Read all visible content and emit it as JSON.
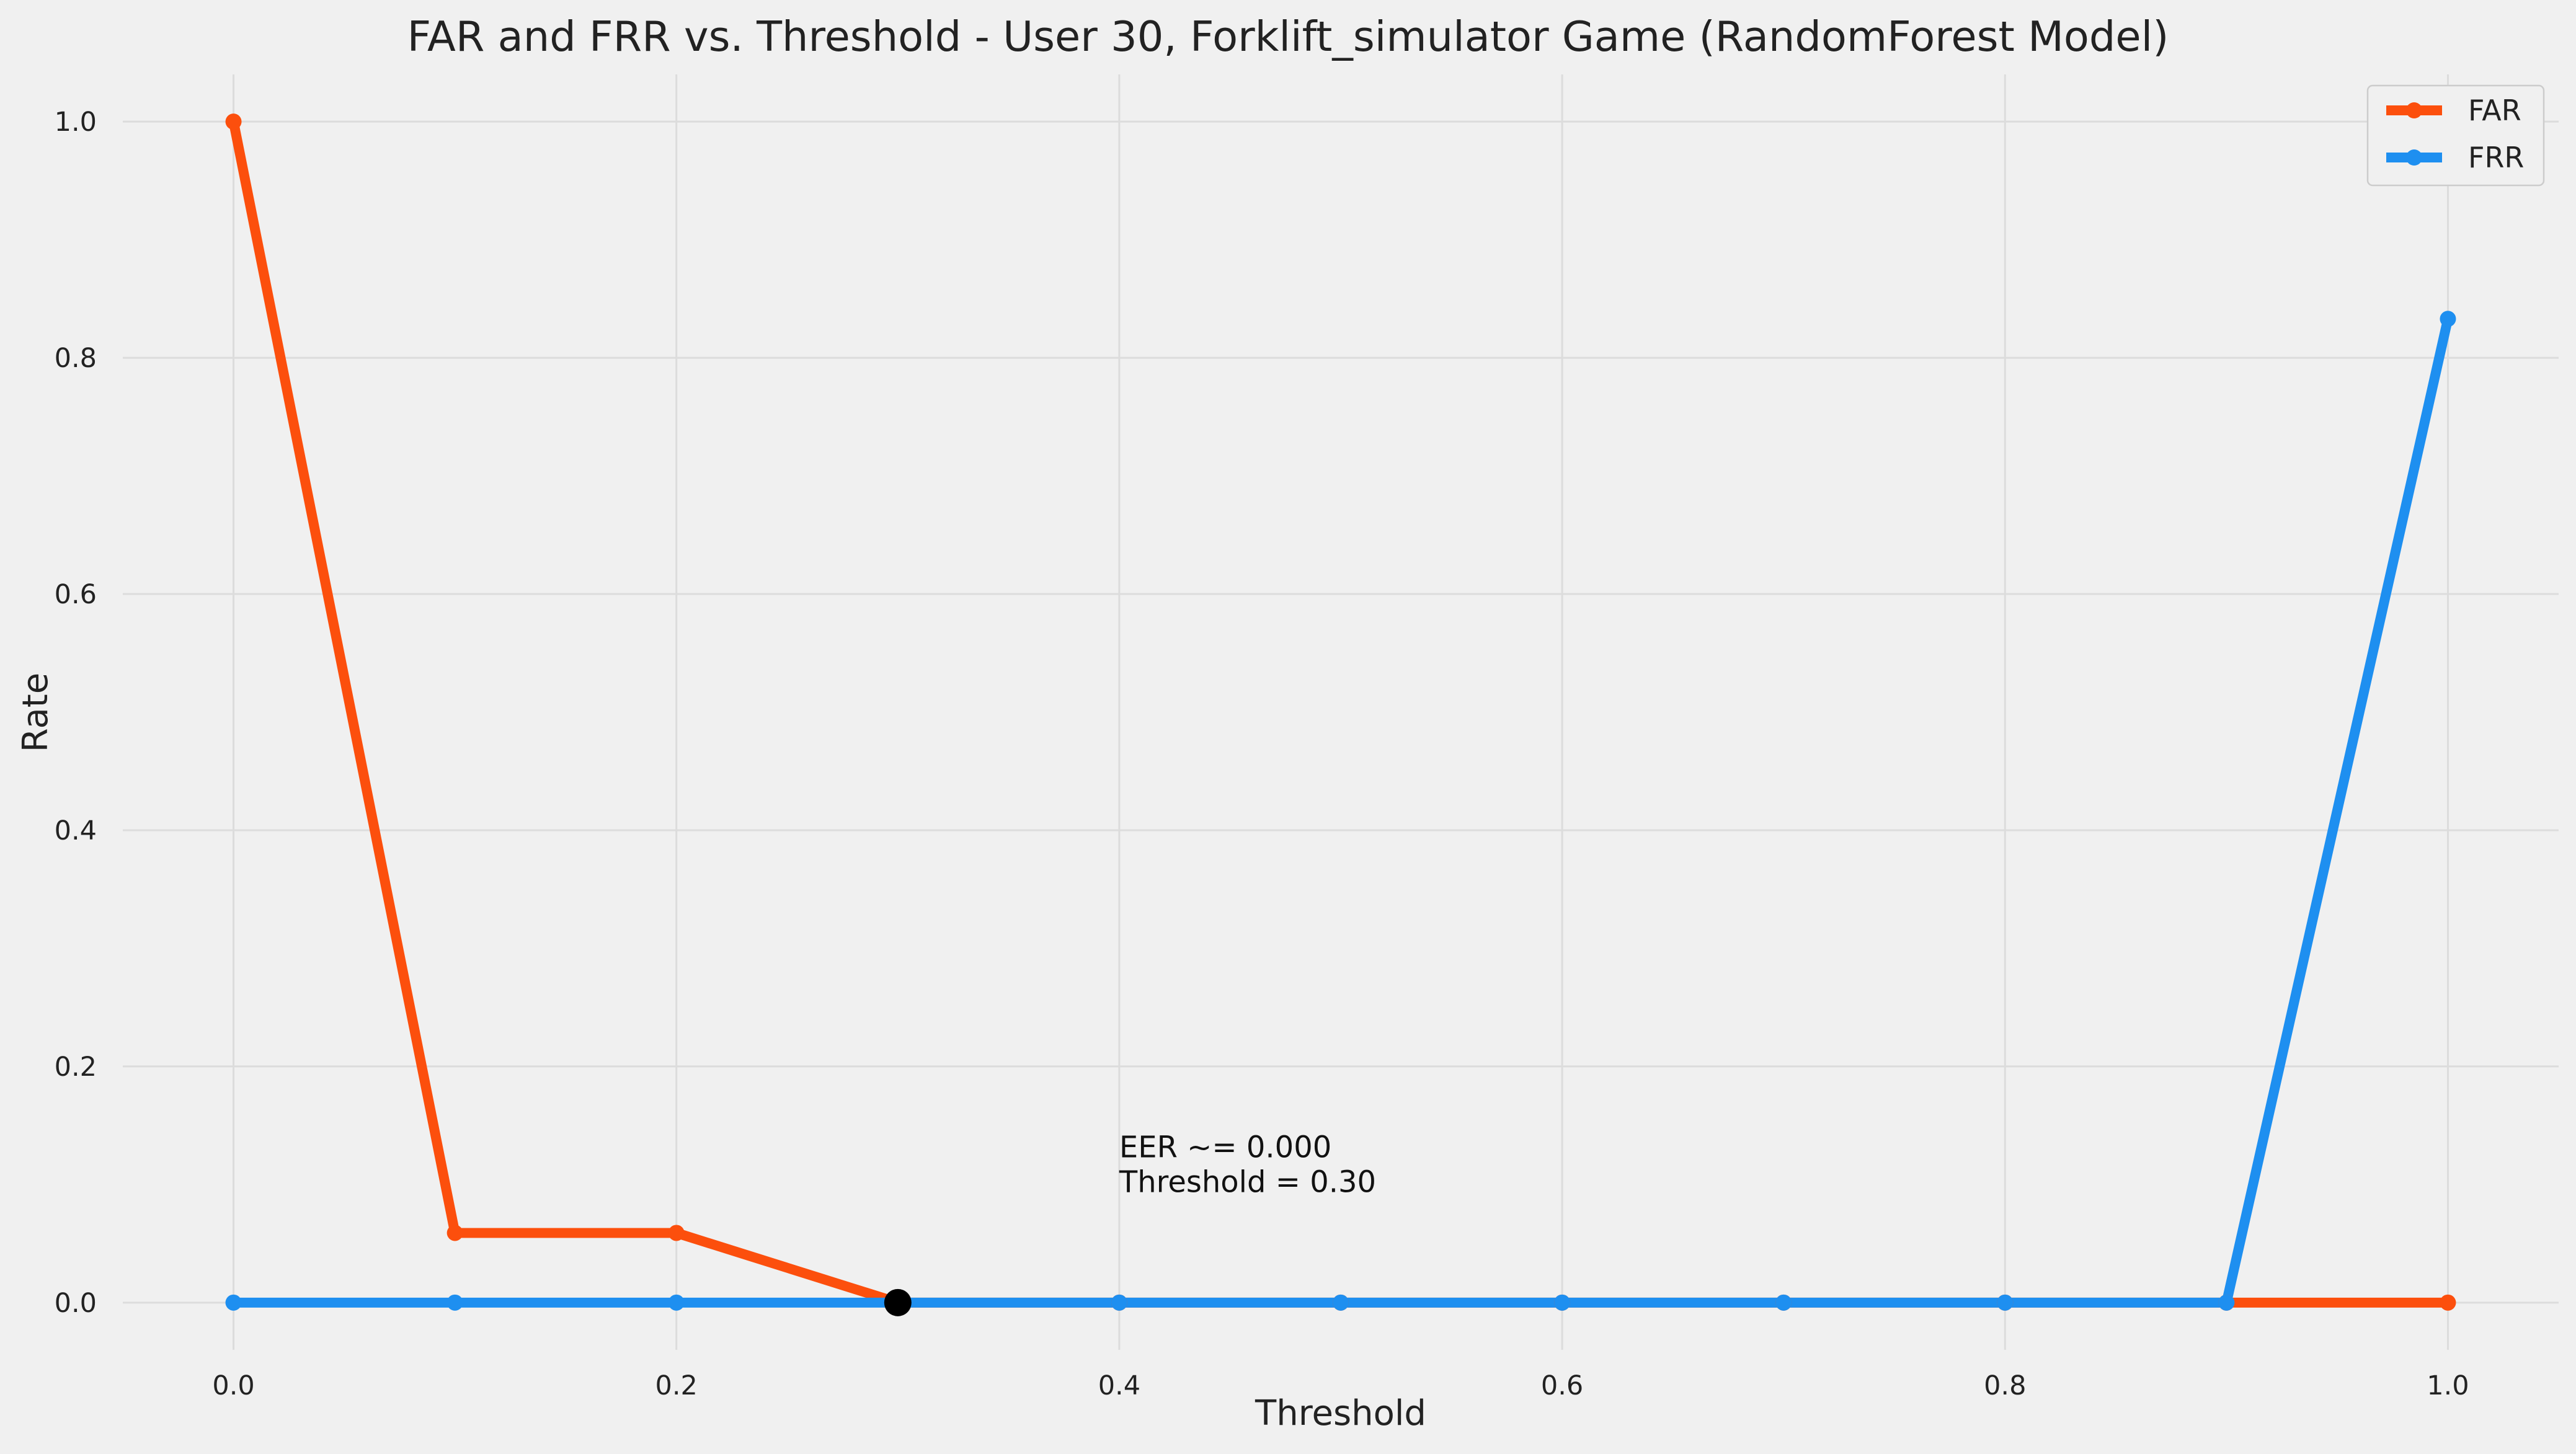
{
  "chart_data": {
    "type": "line",
    "title": "FAR and FRR vs. Threshold - User 30, Forklift_simulator Game (RandomForest Model)",
    "xlabel": "Threshold",
    "ylabel": "Rate",
    "x": [
      0.0,
      0.1,
      0.2,
      0.3,
      0.4,
      0.5,
      0.6,
      0.7,
      0.8,
      0.9,
      1.0
    ],
    "xlim": [
      -0.05,
      1.05
    ],
    "ylim": [
      -0.04,
      1.04
    ],
    "xticks": [
      0.0,
      0.2,
      0.4,
      0.6,
      0.8,
      1.0
    ],
    "xtick_labels": [
      "0.0",
      "0.2",
      "0.4",
      "0.6",
      "0.8",
      "1.0"
    ],
    "yticks": [
      0.0,
      0.2,
      0.4,
      0.6,
      0.8,
      1.0
    ],
    "ytick_labels": [
      "0.0",
      "0.2",
      "0.4",
      "0.6",
      "0.8",
      "1.0"
    ],
    "grid": true,
    "legend_position": "top-right",
    "series": [
      {
        "name": "FAR",
        "color": "#fc4f0d",
        "values": [
          1.0,
          0.059,
          0.059,
          0.0,
          0.0,
          0.0,
          0.0,
          0.0,
          0.0,
          0.0,
          0.0
        ]
      },
      {
        "name": "FRR",
        "color": "#1e8ff0",
        "values": [
          0.0,
          0.0,
          0.0,
          0.0,
          0.0,
          0.0,
          0.0,
          0.0,
          0.0,
          0.0,
          0.833
        ]
      }
    ],
    "eer_point": {
      "x": 0.3,
      "y": 0.0,
      "color": "#000000"
    },
    "annotation": {
      "x": 0.4,
      "y": 0.1,
      "lines": [
        "EER ~= 0.000",
        "Threshold = 0.30"
      ]
    }
  }
}
